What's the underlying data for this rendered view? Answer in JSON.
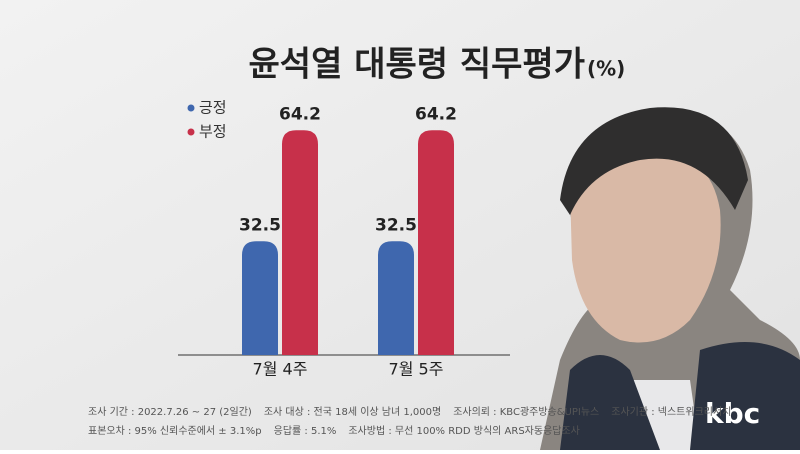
{
  "chart_data": {
    "type": "bar",
    "title": "윤석열 대통령 직무평가",
    "unit": "(%)",
    "categories": [
      "7월 4주",
      "7월 5주"
    ],
    "series": [
      {
        "name": "긍정",
        "color": "#3f67ae",
        "values": [
          32.5,
          32.5
        ]
      },
      {
        "name": "부정",
        "color": "#c7304a",
        "values": [
          64.2,
          64.2
        ]
      }
    ],
    "legend": "top-left",
    "notes": [
      [
        "조사 기간 : 2022.7.26 ~ 27 (2일간)",
        "조사 대상 : 전국 18세 이상 남녀 1,000명",
        "조사의뢰 : KBC광주방송&UPI뉴스",
        "조사기관 : 넥스트위크리서치"
      ],
      [
        "표본오차 : 95% 신뢰수준에서 ± 3.1%p",
        "응답률 : 5.1%",
        "조사방법 : 무선 100% RDD 방식의 ARS자동응답조사"
      ]
    ],
    "logo": "kbc"
  }
}
